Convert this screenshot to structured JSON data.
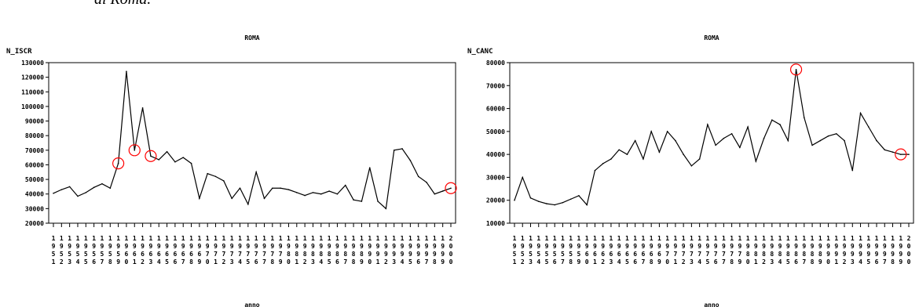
{
  "page": {
    "caption": "di Roma."
  },
  "chart_data": [
    {
      "type": "line",
      "title": "ROMA",
      "ylabel": "N_ISCR",
      "xlabel": "anno",
      "x": [
        1951,
        1952,
        1953,
        1954,
        1955,
        1956,
        1957,
        1958,
        1959,
        1960,
        1961,
        1962,
        1963,
        1964,
        1965,
        1966,
        1967,
        1968,
        1969,
        1970,
        1971,
        1972,
        1973,
        1974,
        1975,
        1976,
        1977,
        1978,
        1979,
        1980,
        1981,
        1982,
        1983,
        1984,
        1985,
        1986,
        1987,
        1988,
        1989,
        1990,
        1991,
        1992,
        1993,
        1994,
        1995,
        1996,
        1997,
        1998,
        1999,
        2000
      ],
      "values": [
        40500,
        43000,
        45000,
        38500,
        41000,
        44500,
        47000,
        44000,
        61000,
        124000,
        70000,
        99000,
        66000,
        63500,
        69000,
        62000,
        65000,
        61000,
        37000,
        54000,
        52000,
        49000,
        37000,
        44000,
        33000,
        55000,
        37000,
        44000,
        44000,
        43000,
        41000,
        39000,
        41000,
        40000,
        42000,
        40000,
        46000,
        36000,
        35000,
        58000,
        35000,
        30000,
        70000,
        71000,
        63000,
        52000,
        48000,
        40000,
        42000,
        44000
      ],
      "ylim": [
        20000,
        130000
      ],
      "yticks": [
        "20000",
        "30000",
        "40000",
        "50000",
        "60000",
        "70000",
        "80000",
        "90000",
        "100000",
        "110000",
        "120000",
        "130000"
      ],
      "highlighted_years": [
        1959,
        1961,
        1963,
        2000
      ],
      "grid": false,
      "line_color": "#000000",
      "marker_color": "#ff0000"
    },
    {
      "type": "line",
      "title": "ROMA",
      "ylabel": "N_CANC",
      "xlabel": "anno",
      "x": [
        1951,
        1952,
        1953,
        1954,
        1955,
        1956,
        1957,
        1958,
        1959,
        1960,
        1961,
        1962,
        1963,
        1964,
        1965,
        1966,
        1967,
        1968,
        1969,
        1970,
        1971,
        1972,
        1973,
        1974,
        1975,
        1976,
        1977,
        1978,
        1979,
        1980,
        1981,
        1982,
        1983,
        1984,
        1985,
        1986,
        1987,
        1988,
        1989,
        1990,
        1991,
        1992,
        1993,
        1994,
        1995,
        1996,
        1997,
        1998,
        1999,
        2000
      ],
      "values": [
        20000,
        30000,
        21000,
        19500,
        18500,
        18000,
        19000,
        20500,
        22000,
        18000,
        33000,
        36000,
        38000,
        42000,
        40000,
        46000,
        38000,
        50000,
        41000,
        50000,
        46000,
        40000,
        35000,
        38000,
        53000,
        44000,
        47000,
        49000,
        43000,
        52000,
        37000,
        47000,
        55000,
        53000,
        46000,
        77000,
        56000,
        44000,
        46000,
        48000,
        49000,
        46000,
        33000,
        58000,
        52000,
        46000,
        42000,
        41000,
        40000,
        40000
      ],
      "ylim": [
        10000,
        80000
      ],
      "yticks": [
        "10000",
        "20000",
        "30000",
        "40000",
        "50000",
        "60000",
        "70000",
        "80000"
      ],
      "highlighted_years": [
        1986,
        1999
      ],
      "grid": false,
      "line_color": "#000000",
      "marker_color": "#ff0000"
    }
  ]
}
